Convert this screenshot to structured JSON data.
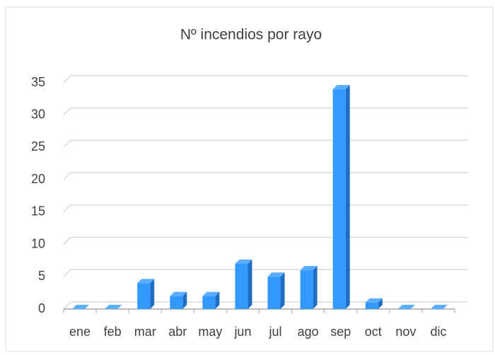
{
  "chart_data": {
    "type": "bar",
    "title": "Nº incendios por rayo",
    "categories": [
      "ene",
      "feb",
      "mar",
      "abr",
      "may",
      "jun",
      "jul",
      "ago",
      "sep",
      "oct",
      "nov",
      "dic"
    ],
    "values": [
      0,
      0,
      4,
      2,
      2,
      7,
      5,
      6,
      34,
      1,
      0,
      0
    ],
    "color": "#3399ff",
    "ylim": [
      0,
      35
    ],
    "yticks": [
      0,
      5,
      10,
      15,
      20,
      25,
      30,
      35
    ],
    "grid": true
  }
}
